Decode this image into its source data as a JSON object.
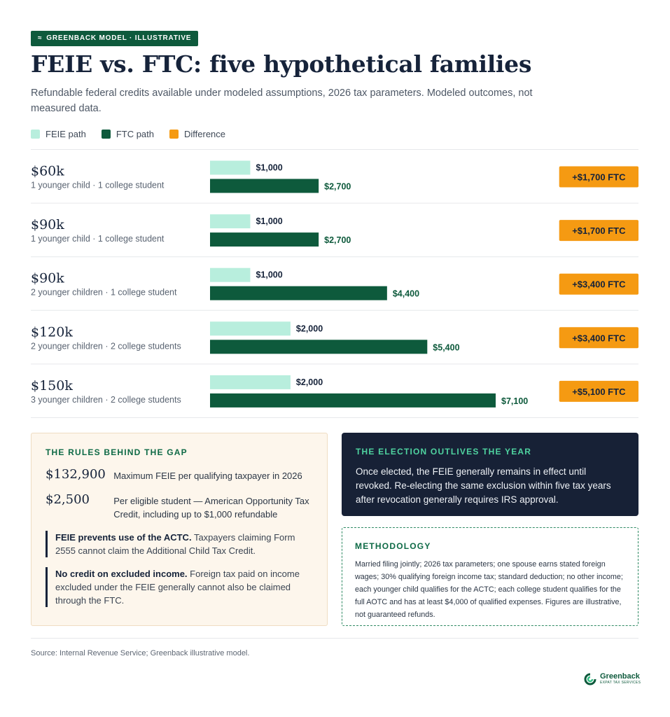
{
  "badge": {
    "mark": "≈",
    "text": "GREENBACK MODEL · ILLUSTRATIVE"
  },
  "title": "FEIE vs. FTC: five hypothetical families",
  "subtitle": "Refundable federal credits available under modeled assumptions, 2026 tax parameters. Modeled outcomes, not measured data.",
  "legend": [
    {
      "label": "FEIE path",
      "color": "#b8eedd"
    },
    {
      "label": "FTC path",
      "color": "#0e5a3c"
    },
    {
      "label": "Difference",
      "color": "#f59a12"
    }
  ],
  "colors": {
    "feie": "#b8eedd",
    "ftc": "#0e5a3c",
    "difference": "#f59a12",
    "rule": "#e6e8eb"
  },
  "chart_data": {
    "type": "bar",
    "orientation": "horizontal",
    "categories": [
      {
        "income": "$60k",
        "household": "1 younger child · 1 college student"
      },
      {
        "income": "$90k",
        "household": "1 younger child · 1 college student"
      },
      {
        "income": "$90k",
        "household": "2 younger children · 1 college student"
      },
      {
        "income": "$120k",
        "household": "2 younger children · 2 college students"
      },
      {
        "income": "$150k",
        "household": "3 younger children · 2 college students"
      }
    ],
    "series": [
      {
        "name": "FEIE path",
        "values": [
          1000,
          1000,
          1000,
          2000,
          2000
        ],
        "labels": [
          "$1,000",
          "$1,000",
          "$1,000",
          "$2,000",
          "$2,000"
        ]
      },
      {
        "name": "FTC path",
        "values": [
          2700,
          2700,
          4400,
          5400,
          7100
        ],
        "labels": [
          "$2,700",
          "$2,700",
          "$4,400",
          "$5,400",
          "$7,100"
        ]
      }
    ],
    "difference_labels": [
      "+$1,700 FTC",
      "+$1,700 FTC",
      "+$3,400 FTC",
      "+$3,400 FTC",
      "+$5,100 FTC"
    ]
  },
  "rules": {
    "heading": "THE RULES BEHIND THE GAP",
    "stats": [
      {
        "value": "$132,900",
        "label": "Maximum FEIE per qualifying taxpayer in 2026"
      },
      {
        "value": "$2,500",
        "label": "Per eligible student — American Opportunity Tax Credit, including up to $1,000 refundable"
      }
    ],
    "notes": [
      {
        "bold": "FEIE prevents use of the ACTC.",
        "text": " Taxpayers claiming Form 2555 cannot claim the Additional Child Tax Credit."
      },
      {
        "bold": "No credit on excluded income.",
        "text": " Foreign tax paid on income excluded under the FEIE generally cannot also be claimed through the FTC."
      }
    ]
  },
  "election": {
    "heading": "THE ELECTION OUTLIVES THE YEAR",
    "text": "Once elected, the FEIE generally remains in effect until revoked. Re-electing the same exclusion within five tax years after revocation generally requires IRS approval."
  },
  "methodology": {
    "heading": "METHODOLOGY",
    "text": "Married filing jointly; 2026 tax parameters; one spouse earns stated foreign wages; 30% qualifying foreign income tax; standard deduction; no other income; each younger child qualifies for the ACTC; each college student qualifies for the full AOTC and has at least $4,000 of qualified expenses. Figures are illustrative, not guaranteed refunds."
  },
  "source": "Source: Internal Revenue Service; Greenback illustrative model.",
  "logo": {
    "name": "Greenback",
    "tagline": "EXPAT TAX SERVICES",
    "icon": "greenback-logo-icon"
  }
}
